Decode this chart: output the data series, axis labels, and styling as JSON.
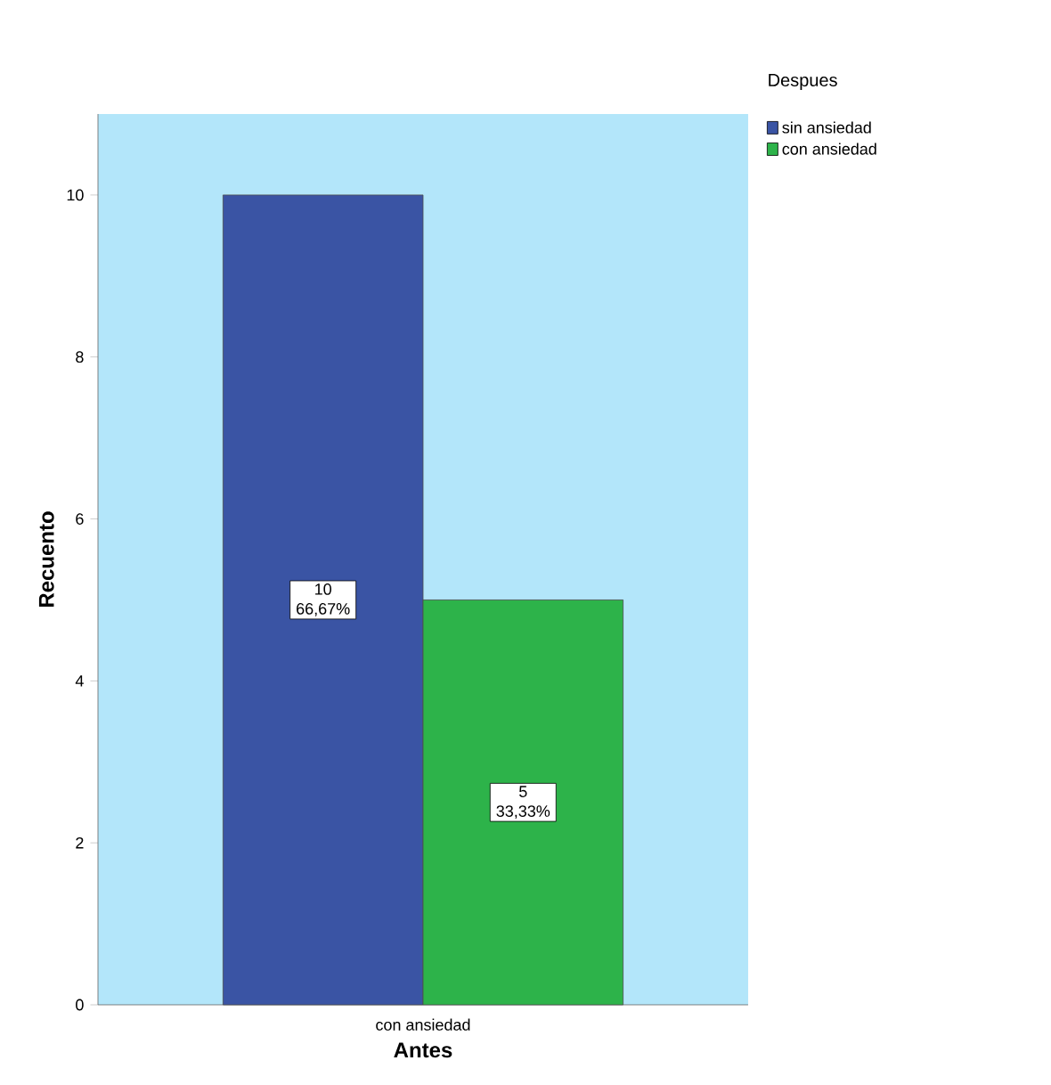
{
  "chart_data": {
    "type": "bar",
    "xlabel": "Antes",
    "ylabel": "Recuento",
    "legend_title": "Despues",
    "categories": [
      "con ansiedad"
    ],
    "series": [
      {
        "name": "sin ansiedad",
        "color": "#3a54a4",
        "values": [
          10
        ],
        "value_labels": [
          "10 66,67%"
        ]
      },
      {
        "name": "con ansiedad",
        "color": "#2db34a",
        "values": [
          5
        ],
        "value_labels": [
          "5 33,33%"
        ]
      }
    ],
    "ylim": [
      0,
      11
    ],
    "yticks": [
      0,
      2,
      4,
      6,
      8,
      10
    ],
    "grid": false,
    "legend": "right"
  }
}
